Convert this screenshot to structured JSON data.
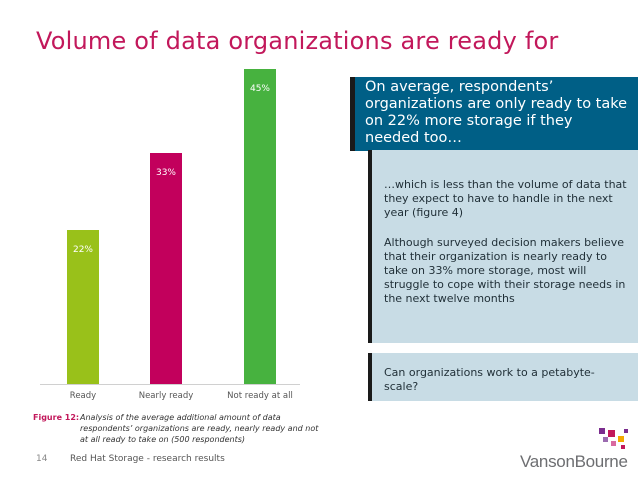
{
  "title": "Volume of data organizations are ready for",
  "chart_data": {
    "type": "bar",
    "categories": [
      "Ready",
      "Nearly ready",
      "Not ready at all"
    ],
    "values": [
      22,
      33,
      45
    ],
    "value_labels": [
      "22%",
      "33%",
      "45%"
    ],
    "colors": [
      "#99c11a",
      "#c2005c",
      "#47b23f"
    ],
    "title": "",
    "xlabel": "",
    "ylabel": "",
    "ylim": [
      0,
      50
    ],
    "grid": false,
    "legend": "none"
  },
  "callouts": {
    "main": "On average, respondents’ organizations are only ready to take on 22% more storage if they needed too…",
    "detail_1": "…which is less than the volume of data that they expect to have to handle in the next year (figure 4)",
    "detail_2": "Although surveyed decision makers believe that their organization is nearly ready to take on 33% more storage, most will struggle to cope with their storage needs in the next twelve months",
    "question": "Can organizations work to a petabyte-scale?"
  },
  "caption": {
    "label": "Figure 12:",
    "text": "Analysis of the average additional amount of data respondents’ organizations are ready, nearly ready and not at all ready to take on (500 respondents)"
  },
  "footer": {
    "page_number": "14",
    "text": "Red Hat Storage - research results"
  },
  "logo": {
    "text": "VansonBourne",
    "square_colors": [
      "#7b2d8e",
      "#c2185b",
      "#f2a900",
      "#9b6bb0",
      "#d96aa0"
    ]
  }
}
